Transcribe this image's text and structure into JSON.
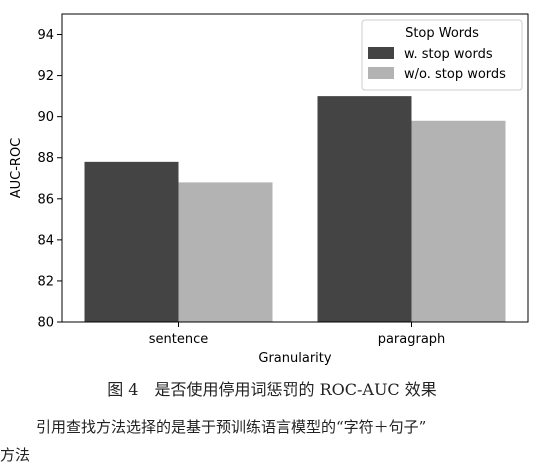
{
  "chart_data": {
    "type": "bar",
    "categories": [
      "sentence",
      "paragraph"
    ],
    "series": [
      {
        "name": "w. stop words",
        "values": [
          87.8,
          91.0
        ],
        "color": "#444444"
      },
      {
        "name": "w/o. stop words",
        "values": [
          86.8,
          89.8
        ],
        "color": "#b3b3b3"
      }
    ],
    "xlabel": "Granularity",
    "ylabel": "AUC-ROC",
    "ylim": [
      80,
      95
    ],
    "yticks": [
      80,
      82,
      84,
      86,
      88,
      90,
      92,
      94
    ],
    "legend": {
      "title": "Stop Words",
      "placement": "top-right"
    },
    "grid": false
  },
  "caption": "图 4　是否使用停用词惩罚的 ROC-AUC 效果",
  "body_text": {
    "line1": "引用查找方法选择的是基于预训练语言模型的“字符＋句子”",
    "line2": "方法"
  }
}
